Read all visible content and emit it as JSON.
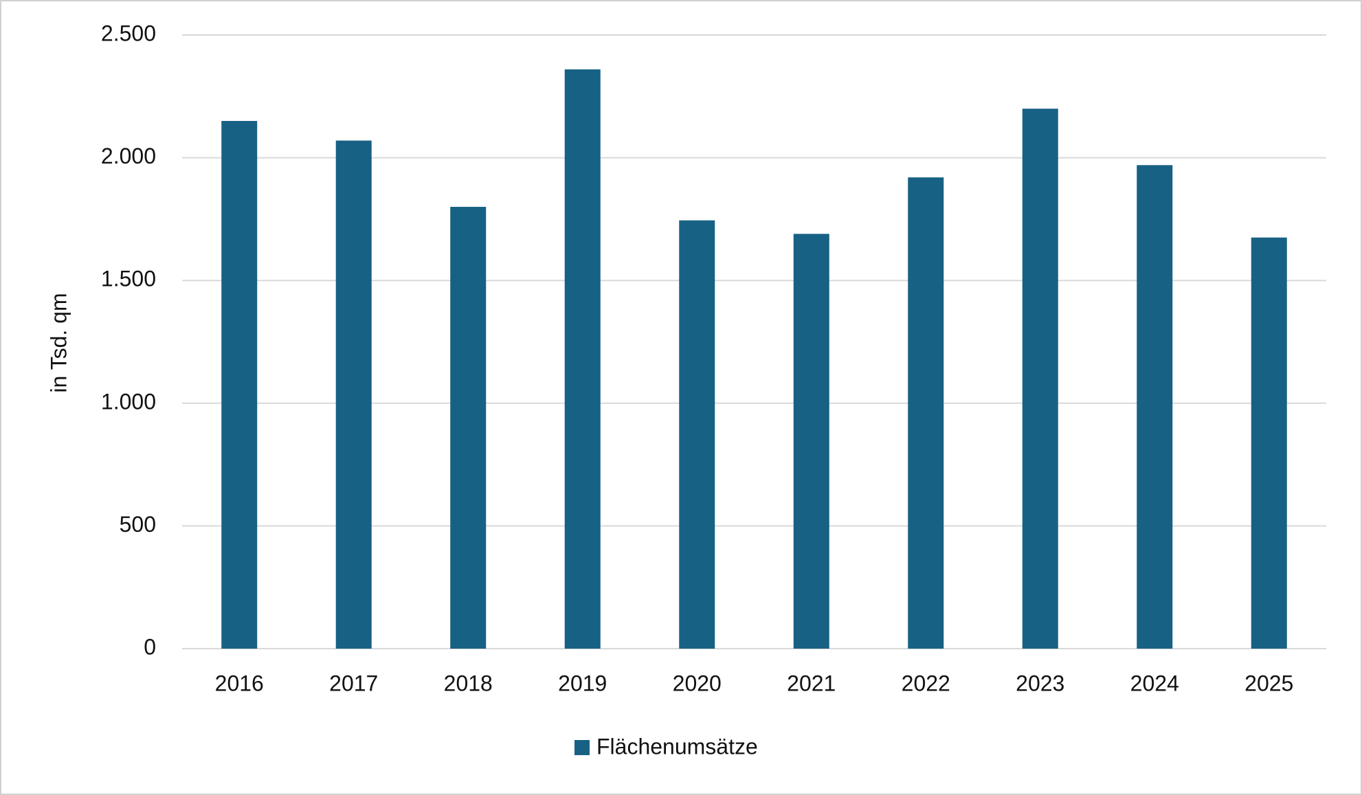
{
  "chart_data": {
    "type": "bar",
    "y_label": "in Tsd. qm",
    "categories": [
      "2016",
      "2017",
      "2018",
      "2019",
      "2020",
      "2021",
      "2022",
      "2023",
      "2024",
      "2025"
    ],
    "series": [
      {
        "name": "Flächenumsätze",
        "color": "#176184",
        "values": [
          2150,
          2070,
          1800,
          2360,
          1745,
          1690,
          1920,
          2200,
          1970,
          1675
        ]
      }
    ],
    "ylim": [
      0,
      2500
    ],
    "yticks": [
      0,
      500,
      {
        "value": 1000,
        "label": "1.000"
      },
      {
        "value": 1500,
        "label": "1.500"
      },
      {
        "value": 2000,
        "label": "2.000"
      },
      {
        "value": 2500,
        "label": "2.500"
      }
    ],
    "grid": true,
    "legend": "bottom"
  }
}
